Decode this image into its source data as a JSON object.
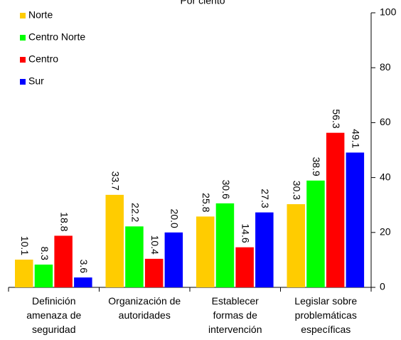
{
  "chart_data": {
    "type": "bar",
    "title": "Por ciento",
    "categories": [
      "Definición\namenaza de\nseguridad",
      "Organización de\nautoridades",
      "Establecer\nformas de\nintervención",
      "Legislar sobre\nproblemáticas\nespecíficas"
    ],
    "series": [
      {
        "name": "Norte",
        "color": "#ffcc00",
        "values": [
          10.1,
          33.7,
          25.8,
          30.3
        ],
        "value_labels": [
          "10.1",
          "33.7",
          "25.8",
          "30.3"
        ]
      },
      {
        "name": "Centro Norte",
        "color": "#00ff00",
        "values": [
          8.3,
          22.2,
          30.6,
          38.9
        ],
        "value_labels": [
          "8.3",
          "22.2",
          "30.6",
          "38.9"
        ]
      },
      {
        "name": "Centro",
        "color": "#ff0000",
        "values": [
          18.8,
          10.4,
          14.6,
          56.3
        ],
        "value_labels": [
          "18.8",
          "10.4",
          "14.6",
          "56.3"
        ]
      },
      {
        "name": "Sur",
        "color": "#0000ff",
        "values": [
          3.6,
          20,
          27.3,
          49.1
        ],
        "value_labels": [
          "3.6",
          "20.0",
          "27.3",
          "49.1"
        ]
      }
    ],
    "ylim": [
      0,
      100
    ],
    "yticks": [
      0,
      20,
      40,
      60,
      80,
      100
    ],
    "y_axis_side": "right",
    "legend": "upper left",
    "grid": false
  }
}
